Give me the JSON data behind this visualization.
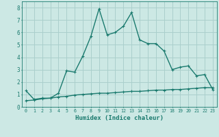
{
  "line1_x": [
    0,
    1,
    2,
    3,
    4,
    5,
    6,
    7,
    8,
    9,
    10,
    11,
    12,
    13,
    14,
    15,
    16,
    17,
    18,
    19,
    20,
    21,
    22,
    23
  ],
  "line1_y": [
    1.3,
    0.6,
    0.7,
    0.7,
    1.1,
    2.9,
    2.8,
    4.1,
    5.7,
    7.9,
    5.8,
    6.0,
    6.5,
    7.6,
    5.4,
    5.1,
    5.1,
    4.5,
    3.0,
    3.2,
    3.3,
    2.5,
    2.6,
    1.4
  ],
  "line2_x": [
    0,
    1,
    2,
    3,
    4,
    5,
    6,
    7,
    8,
    9,
    10,
    11,
    12,
    13,
    14,
    15,
    16,
    17,
    18,
    19,
    20,
    21,
    22,
    23
  ],
  "line2_y": [
    0.5,
    0.55,
    0.65,
    0.7,
    0.8,
    0.85,
    0.95,
    1.0,
    1.05,
    1.1,
    1.1,
    1.15,
    1.2,
    1.25,
    1.25,
    1.3,
    1.35,
    1.35,
    1.4,
    1.4,
    1.45,
    1.5,
    1.55,
    1.55
  ],
  "line_color": "#1a7a6e",
  "bg_color": "#cce8e4",
  "grid_color": "#aacfcc",
  "xlabel": "Humidex (Indice chaleur)",
  "xlim": [
    -0.5,
    23.5
  ],
  "ylim": [
    0,
    8.5
  ],
  "yticks": [
    0,
    1,
    2,
    3,
    4,
    5,
    6,
    7,
    8
  ],
  "xticks": [
    0,
    1,
    2,
    3,
    4,
    5,
    6,
    7,
    8,
    9,
    10,
    11,
    12,
    13,
    14,
    15,
    16,
    17,
    18,
    19,
    20,
    21,
    22,
    23
  ],
  "marker_size": 2.5,
  "line_width": 1.0
}
